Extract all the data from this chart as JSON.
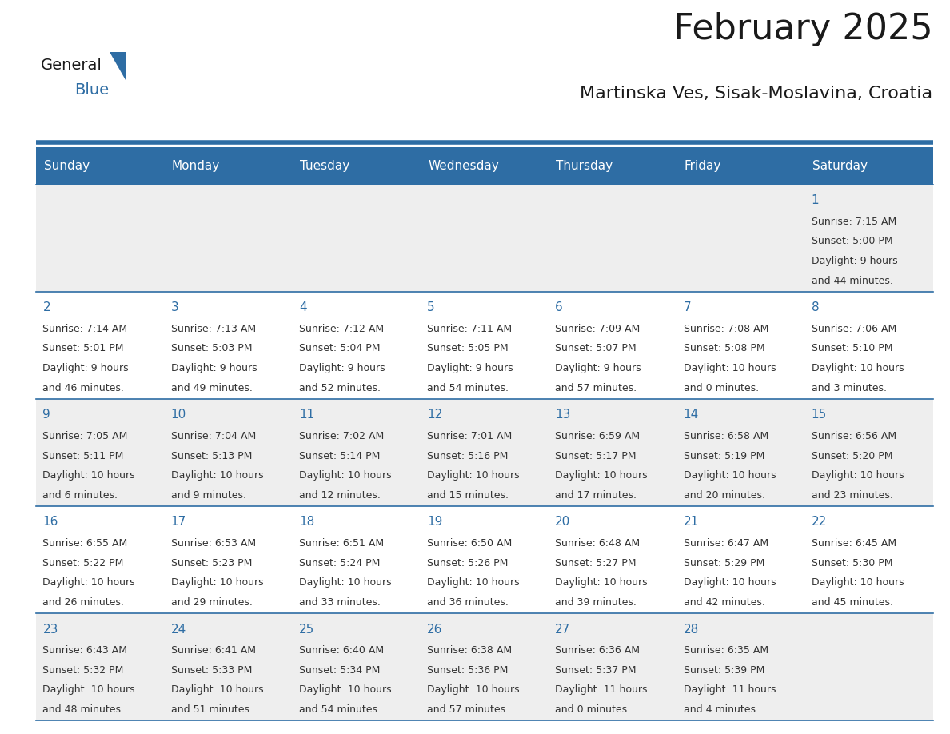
{
  "title": "February 2025",
  "subtitle": "Martinska Ves, Sisak-Moslavina, Croatia",
  "header_bg": "#2e6da4",
  "header_text": "#ffffff",
  "cell_bg_row0": "#eeeeee",
  "cell_bg_row1": "#ffffff",
  "cell_bg_row2": "#eeeeee",
  "cell_bg_row3": "#ffffff",
  "cell_bg_row4": "#eeeeee",
  "row_line_color": "#2e6da4",
  "text_color": "#333333",
  "day_num_color": "#2e6da4",
  "day_headers": [
    "Sunday",
    "Monday",
    "Tuesday",
    "Wednesday",
    "Thursday",
    "Friday",
    "Saturday"
  ],
  "days": [
    {
      "day": 1,
      "col": 6,
      "row": 0,
      "sunrise": "7:15 AM",
      "sunset": "5:00 PM",
      "daylight_line1": "Daylight: 9 hours",
      "daylight_line2": "and 44 minutes."
    },
    {
      "day": 2,
      "col": 0,
      "row": 1,
      "sunrise": "7:14 AM",
      "sunset": "5:01 PM",
      "daylight_line1": "Daylight: 9 hours",
      "daylight_line2": "and 46 minutes."
    },
    {
      "day": 3,
      "col": 1,
      "row": 1,
      "sunrise": "7:13 AM",
      "sunset": "5:03 PM",
      "daylight_line1": "Daylight: 9 hours",
      "daylight_line2": "and 49 minutes."
    },
    {
      "day": 4,
      "col": 2,
      "row": 1,
      "sunrise": "7:12 AM",
      "sunset": "5:04 PM",
      "daylight_line1": "Daylight: 9 hours",
      "daylight_line2": "and 52 minutes."
    },
    {
      "day": 5,
      "col": 3,
      "row": 1,
      "sunrise": "7:11 AM",
      "sunset": "5:05 PM",
      "daylight_line1": "Daylight: 9 hours",
      "daylight_line2": "and 54 minutes."
    },
    {
      "day": 6,
      "col": 4,
      "row": 1,
      "sunrise": "7:09 AM",
      "sunset": "5:07 PM",
      "daylight_line1": "Daylight: 9 hours",
      "daylight_line2": "and 57 minutes."
    },
    {
      "day": 7,
      "col": 5,
      "row": 1,
      "sunrise": "7:08 AM",
      "sunset": "5:08 PM",
      "daylight_line1": "Daylight: 10 hours",
      "daylight_line2": "and 0 minutes."
    },
    {
      "day": 8,
      "col": 6,
      "row": 1,
      "sunrise": "7:06 AM",
      "sunset": "5:10 PM",
      "daylight_line1": "Daylight: 10 hours",
      "daylight_line2": "and 3 minutes."
    },
    {
      "day": 9,
      "col": 0,
      "row": 2,
      "sunrise": "7:05 AM",
      "sunset": "5:11 PM",
      "daylight_line1": "Daylight: 10 hours",
      "daylight_line2": "and 6 minutes."
    },
    {
      "day": 10,
      "col": 1,
      "row": 2,
      "sunrise": "7:04 AM",
      "sunset": "5:13 PM",
      "daylight_line1": "Daylight: 10 hours",
      "daylight_line2": "and 9 minutes."
    },
    {
      "day": 11,
      "col": 2,
      "row": 2,
      "sunrise": "7:02 AM",
      "sunset": "5:14 PM",
      "daylight_line1": "Daylight: 10 hours",
      "daylight_line2": "and 12 minutes."
    },
    {
      "day": 12,
      "col": 3,
      "row": 2,
      "sunrise": "7:01 AM",
      "sunset": "5:16 PM",
      "daylight_line1": "Daylight: 10 hours",
      "daylight_line2": "and 15 minutes."
    },
    {
      "day": 13,
      "col": 4,
      "row": 2,
      "sunrise": "6:59 AM",
      "sunset": "5:17 PM",
      "daylight_line1": "Daylight: 10 hours",
      "daylight_line2": "and 17 minutes."
    },
    {
      "day": 14,
      "col": 5,
      "row": 2,
      "sunrise": "6:58 AM",
      "sunset": "5:19 PM",
      "daylight_line1": "Daylight: 10 hours",
      "daylight_line2": "and 20 minutes."
    },
    {
      "day": 15,
      "col": 6,
      "row": 2,
      "sunrise": "6:56 AM",
      "sunset": "5:20 PM",
      "daylight_line1": "Daylight: 10 hours",
      "daylight_line2": "and 23 minutes."
    },
    {
      "day": 16,
      "col": 0,
      "row": 3,
      "sunrise": "6:55 AM",
      "sunset": "5:22 PM",
      "daylight_line1": "Daylight: 10 hours",
      "daylight_line2": "and 26 minutes."
    },
    {
      "day": 17,
      "col": 1,
      "row": 3,
      "sunrise": "6:53 AM",
      "sunset": "5:23 PM",
      "daylight_line1": "Daylight: 10 hours",
      "daylight_line2": "and 29 minutes."
    },
    {
      "day": 18,
      "col": 2,
      "row": 3,
      "sunrise": "6:51 AM",
      "sunset": "5:24 PM",
      "daylight_line1": "Daylight: 10 hours",
      "daylight_line2": "and 33 minutes."
    },
    {
      "day": 19,
      "col": 3,
      "row": 3,
      "sunrise": "6:50 AM",
      "sunset": "5:26 PM",
      "daylight_line1": "Daylight: 10 hours",
      "daylight_line2": "and 36 minutes."
    },
    {
      "day": 20,
      "col": 4,
      "row": 3,
      "sunrise": "6:48 AM",
      "sunset": "5:27 PM",
      "daylight_line1": "Daylight: 10 hours",
      "daylight_line2": "and 39 minutes."
    },
    {
      "day": 21,
      "col": 5,
      "row": 3,
      "sunrise": "6:47 AM",
      "sunset": "5:29 PM",
      "daylight_line1": "Daylight: 10 hours",
      "daylight_line2": "and 42 minutes."
    },
    {
      "day": 22,
      "col": 6,
      "row": 3,
      "sunrise": "6:45 AM",
      "sunset": "5:30 PM",
      "daylight_line1": "Daylight: 10 hours",
      "daylight_line2": "and 45 minutes."
    },
    {
      "day": 23,
      "col": 0,
      "row": 4,
      "sunrise": "6:43 AM",
      "sunset": "5:32 PM",
      "daylight_line1": "Daylight: 10 hours",
      "daylight_line2": "and 48 minutes."
    },
    {
      "day": 24,
      "col": 1,
      "row": 4,
      "sunrise": "6:41 AM",
      "sunset": "5:33 PM",
      "daylight_line1": "Daylight: 10 hours",
      "daylight_line2": "and 51 minutes."
    },
    {
      "day": 25,
      "col": 2,
      "row": 4,
      "sunrise": "6:40 AM",
      "sunset": "5:34 PM",
      "daylight_line1": "Daylight: 10 hours",
      "daylight_line2": "and 54 minutes."
    },
    {
      "day": 26,
      "col": 3,
      "row": 4,
      "sunrise": "6:38 AM",
      "sunset": "5:36 PM",
      "daylight_line1": "Daylight: 10 hours",
      "daylight_line2": "and 57 minutes."
    },
    {
      "day": 27,
      "col": 4,
      "row": 4,
      "sunrise": "6:36 AM",
      "sunset": "5:37 PM",
      "daylight_line1": "Daylight: 11 hours",
      "daylight_line2": "and 0 minutes."
    },
    {
      "day": 28,
      "col": 5,
      "row": 4,
      "sunrise": "6:35 AM",
      "sunset": "5:39 PM",
      "daylight_line1": "Daylight: 11 hours",
      "daylight_line2": "and 4 minutes."
    }
  ],
  "logo_general_color": "#1a1a1a",
  "logo_blue_color": "#2e6da4",
  "logo_triangle_color": "#2e6da4",
  "title_fontsize": 32,
  "subtitle_fontsize": 16,
  "header_fontsize": 11,
  "daynum_fontsize": 11,
  "cell_fontsize": 9
}
